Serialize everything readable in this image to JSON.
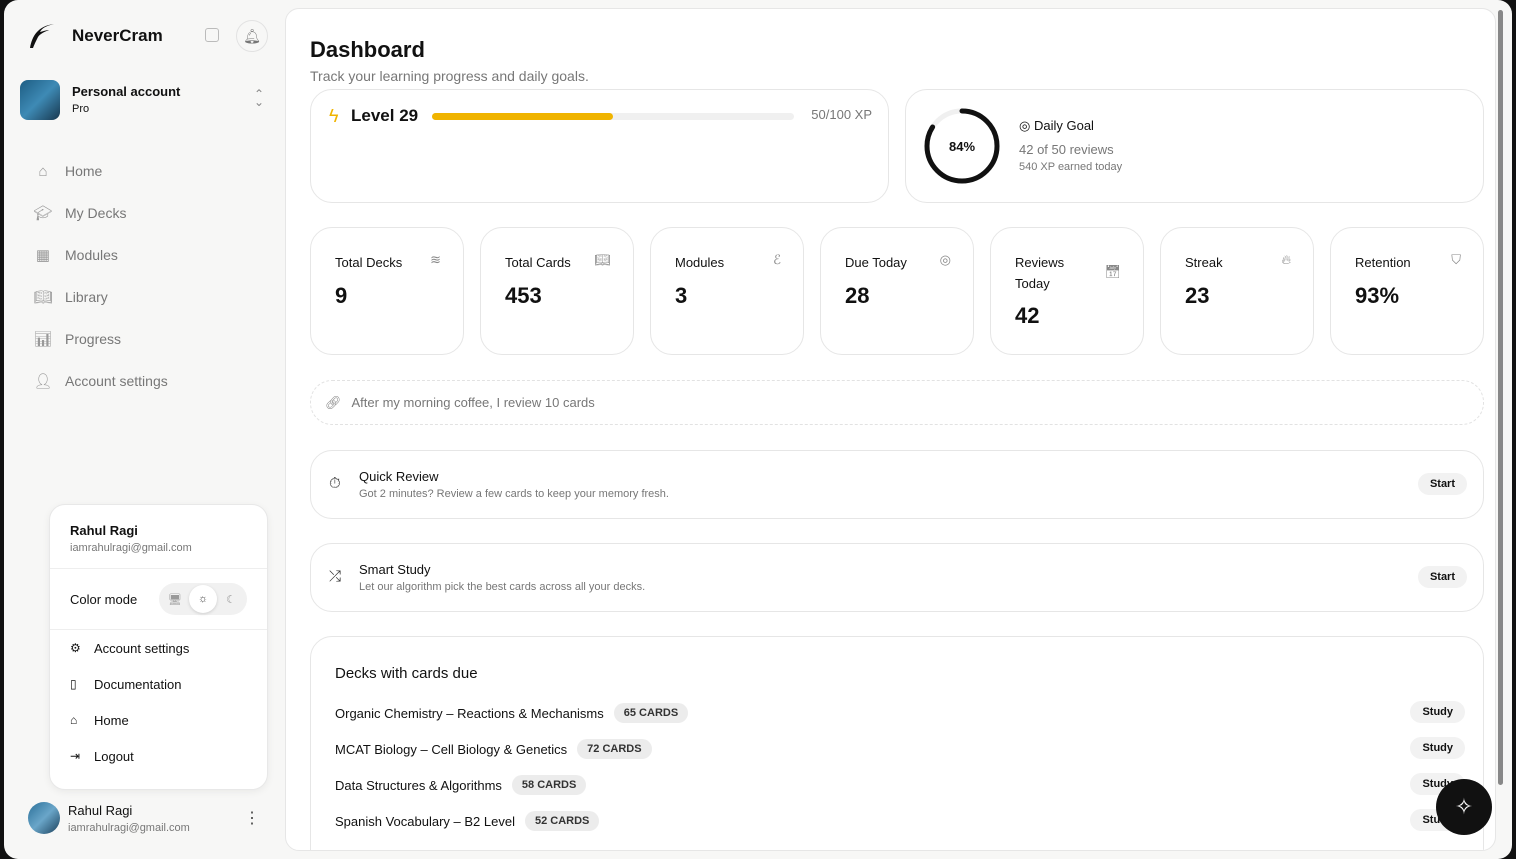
{
  "app": {
    "name": "NeverCram"
  },
  "account": {
    "name": "Personal account",
    "plan": "Pro"
  },
  "nav": [
    {
      "label": "Home",
      "icon": "home-icon"
    },
    {
      "label": "My Decks",
      "icon": "graduation-cap-icon"
    },
    {
      "label": "Modules",
      "icon": "grid-icon"
    },
    {
      "label": "Library",
      "icon": "book-open-icon"
    },
    {
      "label": "Progress",
      "icon": "bar-chart-icon"
    },
    {
      "label": "Account settings",
      "icon": "user-cog-icon"
    }
  ],
  "user_menu": {
    "name": "Rahul Ragi",
    "email": "iamrahulragi@gmail.com",
    "color_mode_label": "Color mode",
    "color_mode": "light",
    "items": [
      {
        "label": "Account settings"
      },
      {
        "label": "Documentation"
      },
      {
        "label": "Home"
      },
      {
        "label": "Logout"
      }
    ]
  },
  "footer_user": {
    "name": "Rahul Ragi",
    "email": "iamrahulragi@gmail.com"
  },
  "header": {
    "title": "Dashboard",
    "subtitle": "Track your learning progress and daily goals."
  },
  "level": {
    "label": "Level 29",
    "xp_text": "50/100 XP",
    "progress": 0.5,
    "color": "#f0b400"
  },
  "daily_goal": {
    "percent_text": "84%",
    "percent": 0.84,
    "title": "Daily Goal",
    "reviews": "42 of 50 reviews",
    "xp": "540 XP earned today"
  },
  "stats": [
    {
      "label": "Total Decks",
      "value": "9"
    },
    {
      "label": "Total Cards",
      "value": "453"
    },
    {
      "label": "Modules",
      "value": "3"
    },
    {
      "label": "Due Today",
      "value": "28"
    },
    {
      "label": "Reviews Today",
      "value": "42"
    },
    {
      "label": "Streak",
      "value": "23"
    },
    {
      "label": "Retention",
      "value": "93%"
    }
  ],
  "habit": "After my morning coffee, I review 10 cards",
  "quick_review": {
    "title": "Quick Review",
    "desc": "Got 2 minutes? Review a few cards to keep your memory fresh.",
    "button": "Start"
  },
  "smart_study": {
    "title": "Smart Study",
    "desc": "Let our algorithm pick the best cards across all your decks.",
    "button": "Start"
  },
  "decks_due": {
    "title": "Decks with cards due",
    "study_label": "Study",
    "rows": [
      {
        "name": "Organic Chemistry – Reactions & Mechanisms",
        "count": "65 CARDS"
      },
      {
        "name": "MCAT Biology – Cell Biology & Genetics",
        "count": "72 CARDS"
      },
      {
        "name": "Data Structures & Algorithms",
        "count": "58 CARDS"
      },
      {
        "name": "Spanish Vocabulary – B2 Level",
        "count": "52 CARDS"
      }
    ]
  }
}
